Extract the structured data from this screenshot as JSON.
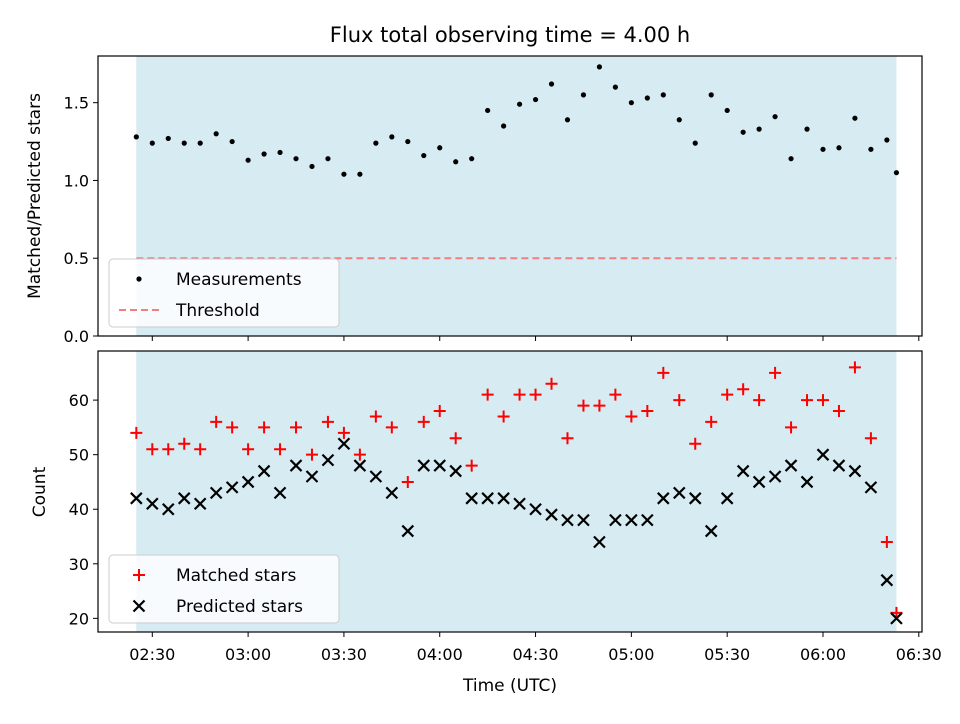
{
  "chart_data": [
    {
      "type": "scatter",
      "title": "Flux total observing time = 4.00 h",
      "xlabel": "",
      "ylabel": "Matched/Predicted stars",
      "xlim": [
        "02:13",
        "06:31"
      ],
      "ylim": [
        0,
        1.8
      ],
      "yticks": [
        "0.0",
        "0.5",
        "1.0",
        "1.5"
      ],
      "shaded_interval": [
        "02:25",
        "06:23"
      ],
      "grid": false,
      "legend_position": "lower-left",
      "legend": [
        "Measurements",
        "Threshold"
      ],
      "series": [
        {
          "name": "Measurements",
          "color": "#000000",
          "x": [
            "02:25",
            "02:30",
            "02:35",
            "02:40",
            "02:45",
            "02:50",
            "02:55",
            "03:00",
            "03:05",
            "03:10",
            "03:15",
            "03:20",
            "03:25",
            "03:30",
            "03:35",
            "03:40",
            "03:45",
            "03:50",
            "03:55",
            "04:00",
            "04:05",
            "04:10",
            "04:15",
            "04:20",
            "04:25",
            "04:30",
            "04:35",
            "04:40",
            "04:45",
            "04:50",
            "04:55",
            "05:00",
            "05:05",
            "05:10",
            "05:15",
            "05:20",
            "05:25",
            "05:30",
            "05:35",
            "05:40",
            "05:45",
            "05:50",
            "05:55",
            "06:00",
            "06:05",
            "06:10",
            "06:15",
            "06:20",
            "06:23"
          ],
          "y": [
            1.28,
            1.24,
            1.27,
            1.24,
            1.24,
            1.3,
            1.25,
            1.13,
            1.17,
            1.18,
            1.14,
            1.09,
            1.14,
            1.04,
            1.04,
            1.24,
            1.28,
            1.25,
            1.16,
            1.21,
            1.12,
            1.14,
            1.45,
            1.35,
            1.49,
            1.52,
            1.62,
            1.39,
            1.55,
            1.73,
            1.6,
            1.5,
            1.53,
            1.55,
            1.39,
            1.24,
            1.55,
            1.45,
            1.31,
            1.33,
            1.41,
            1.14,
            1.33,
            1.2,
            1.21,
            1.4,
            1.2,
            1.26,
            1.05
          ]
        },
        {
          "name": "Threshold",
          "color": "#f08080",
          "style": "dashed",
          "x": [
            "02:25",
            "06:23"
          ],
          "y": [
            0.5,
            0.5
          ]
        }
      ]
    },
    {
      "type": "scatter",
      "title": "",
      "xlabel": "Time (UTC)",
      "ylabel": "Count",
      "xlim": [
        "02:13",
        "06:31"
      ],
      "ylim": [
        17.5,
        69
      ],
      "yticks": [
        "20",
        "30",
        "40",
        "50",
        "60"
      ],
      "xticks": [
        "02:30",
        "03:00",
        "03:30",
        "04:00",
        "04:30",
        "05:00",
        "05:30",
        "06:00",
        "06:30"
      ],
      "shaded_interval": [
        "02:25",
        "06:23"
      ],
      "grid": false,
      "legend_position": "lower-left",
      "legend": [
        "Matched stars",
        "Predicted stars"
      ],
      "series": [
        {
          "name": "Matched stars",
          "color": "#ff0000",
          "marker": "+",
          "x": [
            "02:25",
            "02:30",
            "02:35",
            "02:40",
            "02:45",
            "02:50",
            "02:55",
            "03:00",
            "03:05",
            "03:10",
            "03:15",
            "03:20",
            "03:25",
            "03:30",
            "03:35",
            "03:40",
            "03:45",
            "03:50",
            "03:55",
            "04:00",
            "04:05",
            "04:10",
            "04:15",
            "04:20",
            "04:25",
            "04:30",
            "04:35",
            "04:40",
            "04:45",
            "04:50",
            "04:55",
            "05:00",
            "05:05",
            "05:10",
            "05:15",
            "05:20",
            "05:25",
            "05:30",
            "05:35",
            "05:40",
            "05:45",
            "05:50",
            "05:55",
            "06:00",
            "06:05",
            "06:10",
            "06:15",
            "06:20",
            "06:23"
          ],
          "y": [
            54,
            51,
            51,
            52,
            51,
            56,
            55,
            51,
            55,
            51,
            55,
            50,
            56,
            54,
            50,
            57,
            55,
            45,
            56,
            58,
            53,
            48,
            61,
            57,
            61,
            61,
            63,
            53,
            59,
            59,
            61,
            57,
            58,
            65,
            60,
            52,
            56,
            61,
            62,
            60,
            65,
            55,
            60,
            60,
            58,
            66,
            53,
            34,
            21
          ]
        },
        {
          "name": "Predicted stars",
          "color": "#000000",
          "marker": "x",
          "x": [
            "02:25",
            "02:30",
            "02:35",
            "02:40",
            "02:45",
            "02:50",
            "02:55",
            "03:00",
            "03:05",
            "03:10",
            "03:15",
            "03:20",
            "03:25",
            "03:30",
            "03:35",
            "03:40",
            "03:45",
            "03:50",
            "03:55",
            "04:00",
            "04:05",
            "04:10",
            "04:15",
            "04:20",
            "04:25",
            "04:30",
            "04:35",
            "04:40",
            "04:45",
            "04:50",
            "04:55",
            "05:00",
            "05:05",
            "05:10",
            "05:15",
            "05:20",
            "05:25",
            "05:30",
            "05:35",
            "05:40",
            "05:45",
            "05:50",
            "05:55",
            "06:00",
            "06:05",
            "06:10",
            "06:15",
            "06:20",
            "06:23"
          ],
          "y": [
            42,
            41,
            40,
            42,
            41,
            43,
            44,
            45,
            47,
            43,
            48,
            46,
            49,
            52,
            48,
            46,
            43,
            36,
            48,
            48,
            47,
            42,
            42,
            42,
            41,
            40,
            39,
            38,
            38,
            34,
            38,
            38,
            38,
            42,
            43,
            42,
            36,
            42,
            47,
            45,
            46,
            48,
            45,
            50,
            48,
            47,
            44,
            27,
            20
          ]
        }
      ]
    }
  ]
}
